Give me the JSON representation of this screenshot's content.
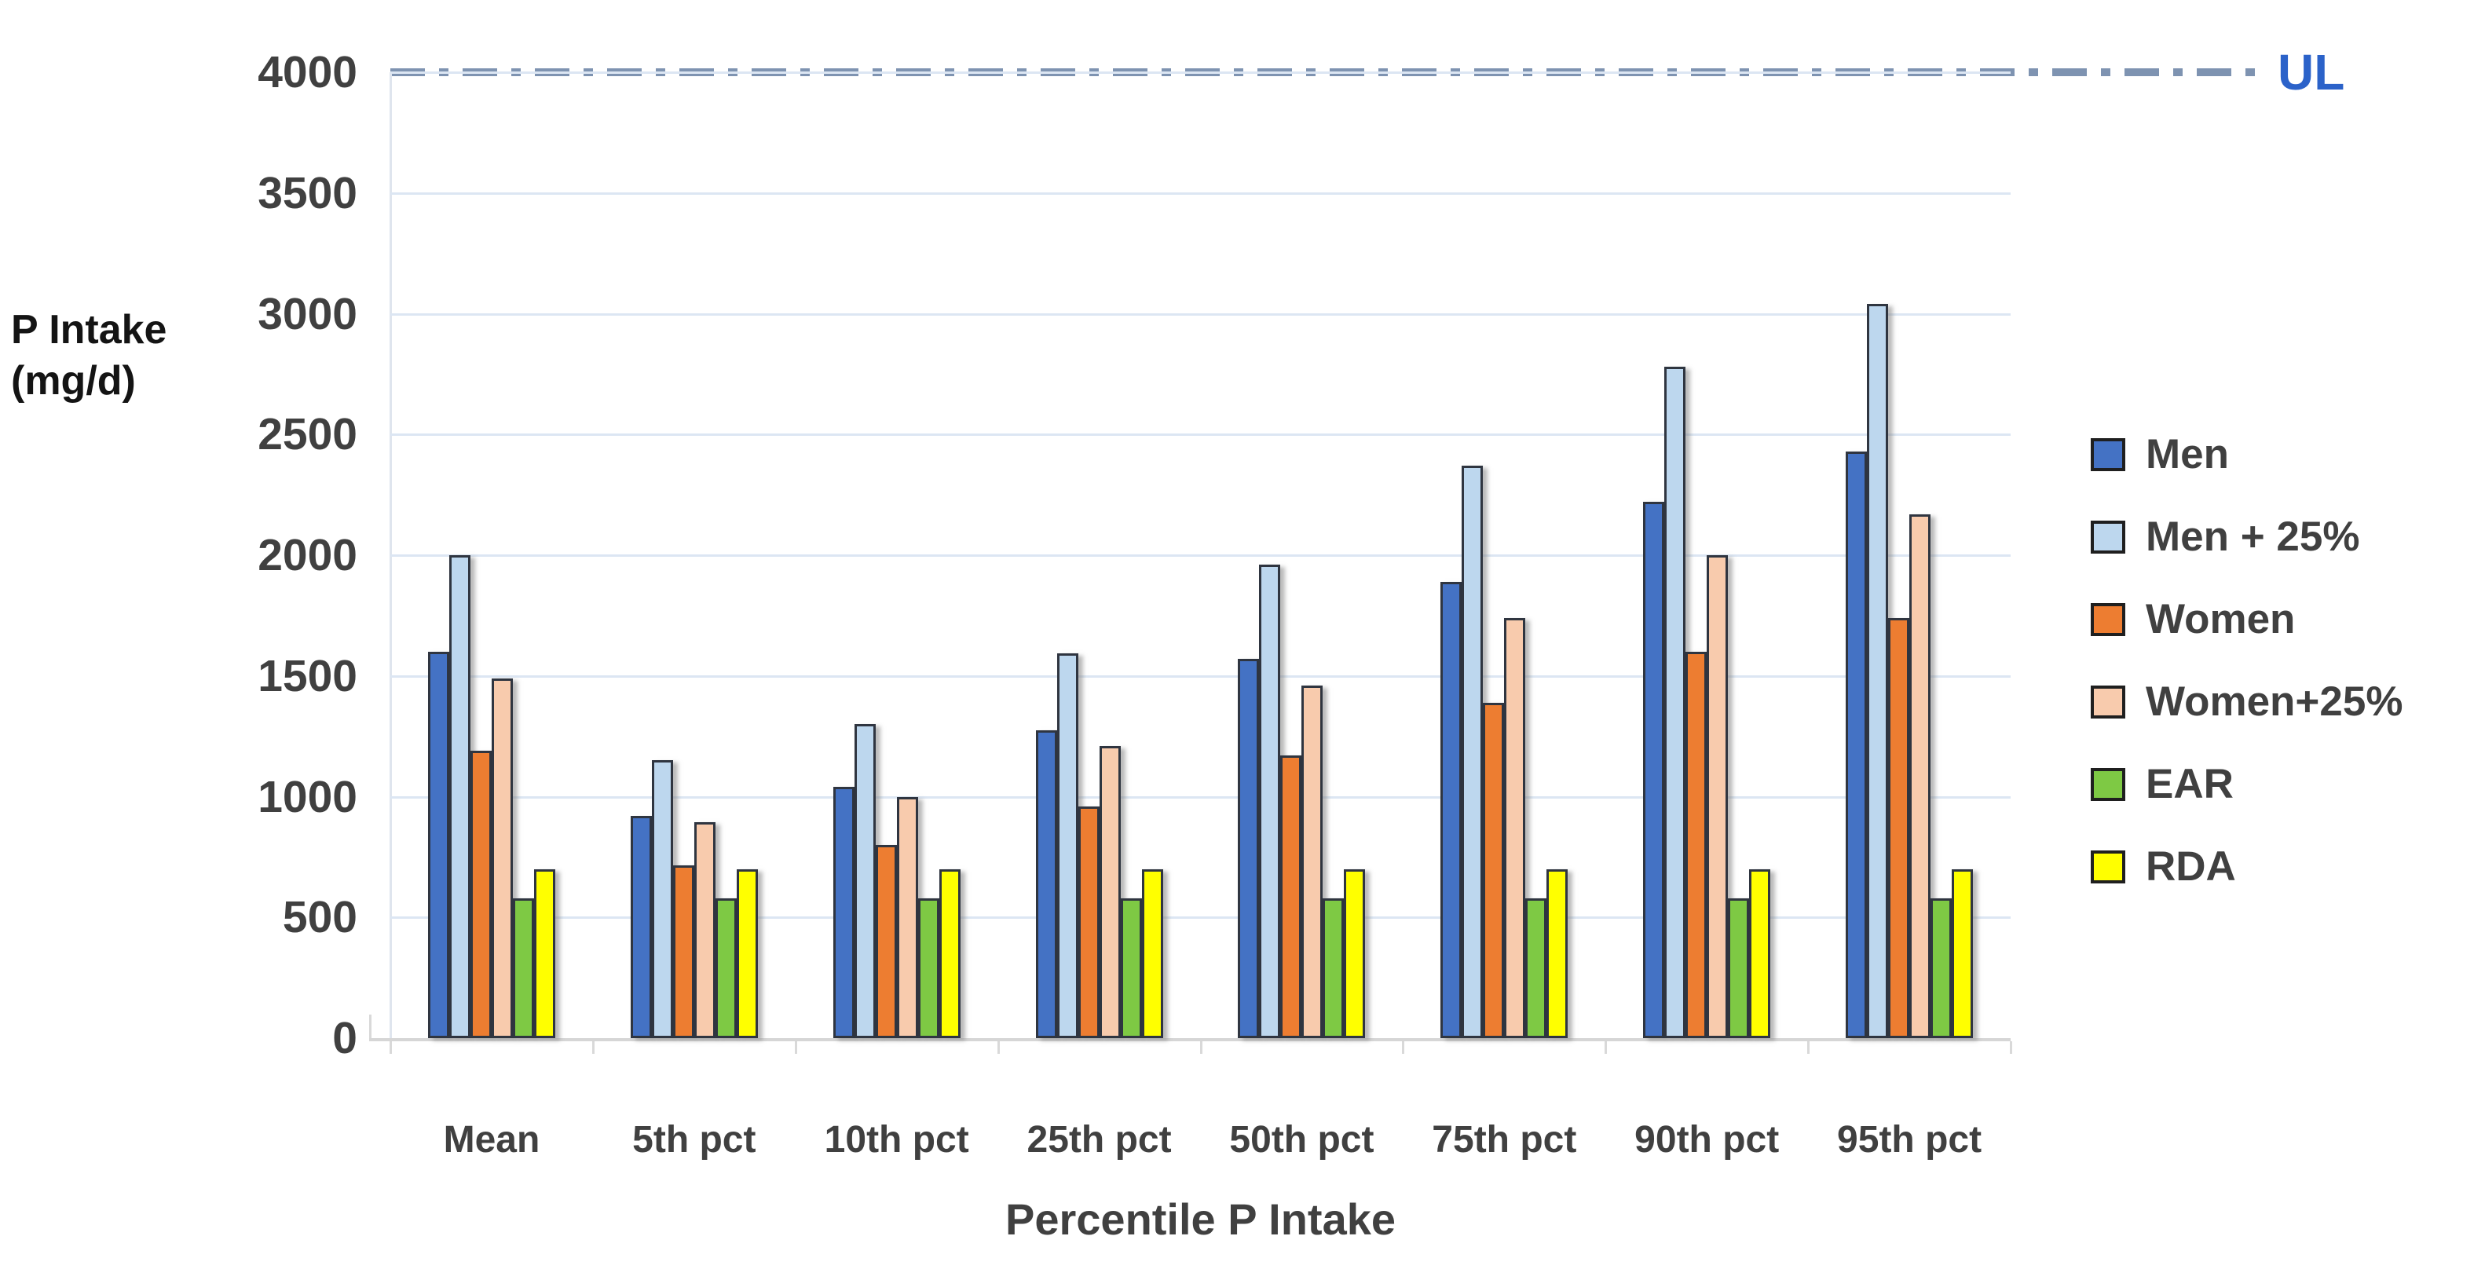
{
  "figure": {
    "ul_label": "UL",
    "y_axis_title_line1": "P Intake",
    "y_axis_title_line2": "(mg/d)",
    "x_axis_title": "Percentile P Intake"
  },
  "colors": {
    "gridline": "#dce6f3",
    "baseline": "#d6d6d6",
    "tick_text": "#404040",
    "bar_outline": "#2f3540",
    "ul_line": "#7e93b1",
    "ul_label": "#2b62c9"
  },
  "chart_data": {
    "type": "bar",
    "title": "",
    "xlabel": "Percentile P Intake",
    "ylabel": "P Intake (mg/d)",
    "ylim": [
      0,
      4000
    ],
    "ytick_step": 500,
    "grid": true,
    "legend_position": "right",
    "categories": [
      "Mean",
      "5th pct",
      "10th pct",
      "25th pct",
      "50th pct",
      "75th pct",
      "90th pct",
      "95th pct"
    ],
    "series": [
      {
        "name": "Men",
        "color": "#4472c4",
        "values": [
          1600,
          920,
          1040,
          1275,
          1570,
          1890,
          2220,
          2430
        ]
      },
      {
        "name": "Men + 25%",
        "color": "#bdd7ee",
        "values": [
          2000,
          1150,
          1300,
          1595,
          1960,
          2370,
          2780,
          3040
        ]
      },
      {
        "name": "Women",
        "color": "#ed7d31",
        "values": [
          1190,
          715,
          800,
          960,
          1170,
          1390,
          1600,
          1740
        ]
      },
      {
        "name": "Women+25%",
        "color": "#f8cbad",
        "values": [
          1490,
          895,
          1000,
          1210,
          1460,
          1740,
          2000,
          2170
        ]
      },
      {
        "name": "EAR",
        "color": "#7ec944",
        "values": [
          580,
          580,
          580,
          580,
          580,
          580,
          580,
          580
        ]
      },
      {
        "name": "RDA",
        "color": "#ffff00",
        "values": [
          700,
          700,
          700,
          700,
          700,
          700,
          700,
          700
        ]
      }
    ],
    "reference_line": {
      "label": "UL",
      "value": 4000,
      "style": "dash-dot",
      "color": "#7e93b1",
      "label_color": "#2b62c9"
    }
  }
}
